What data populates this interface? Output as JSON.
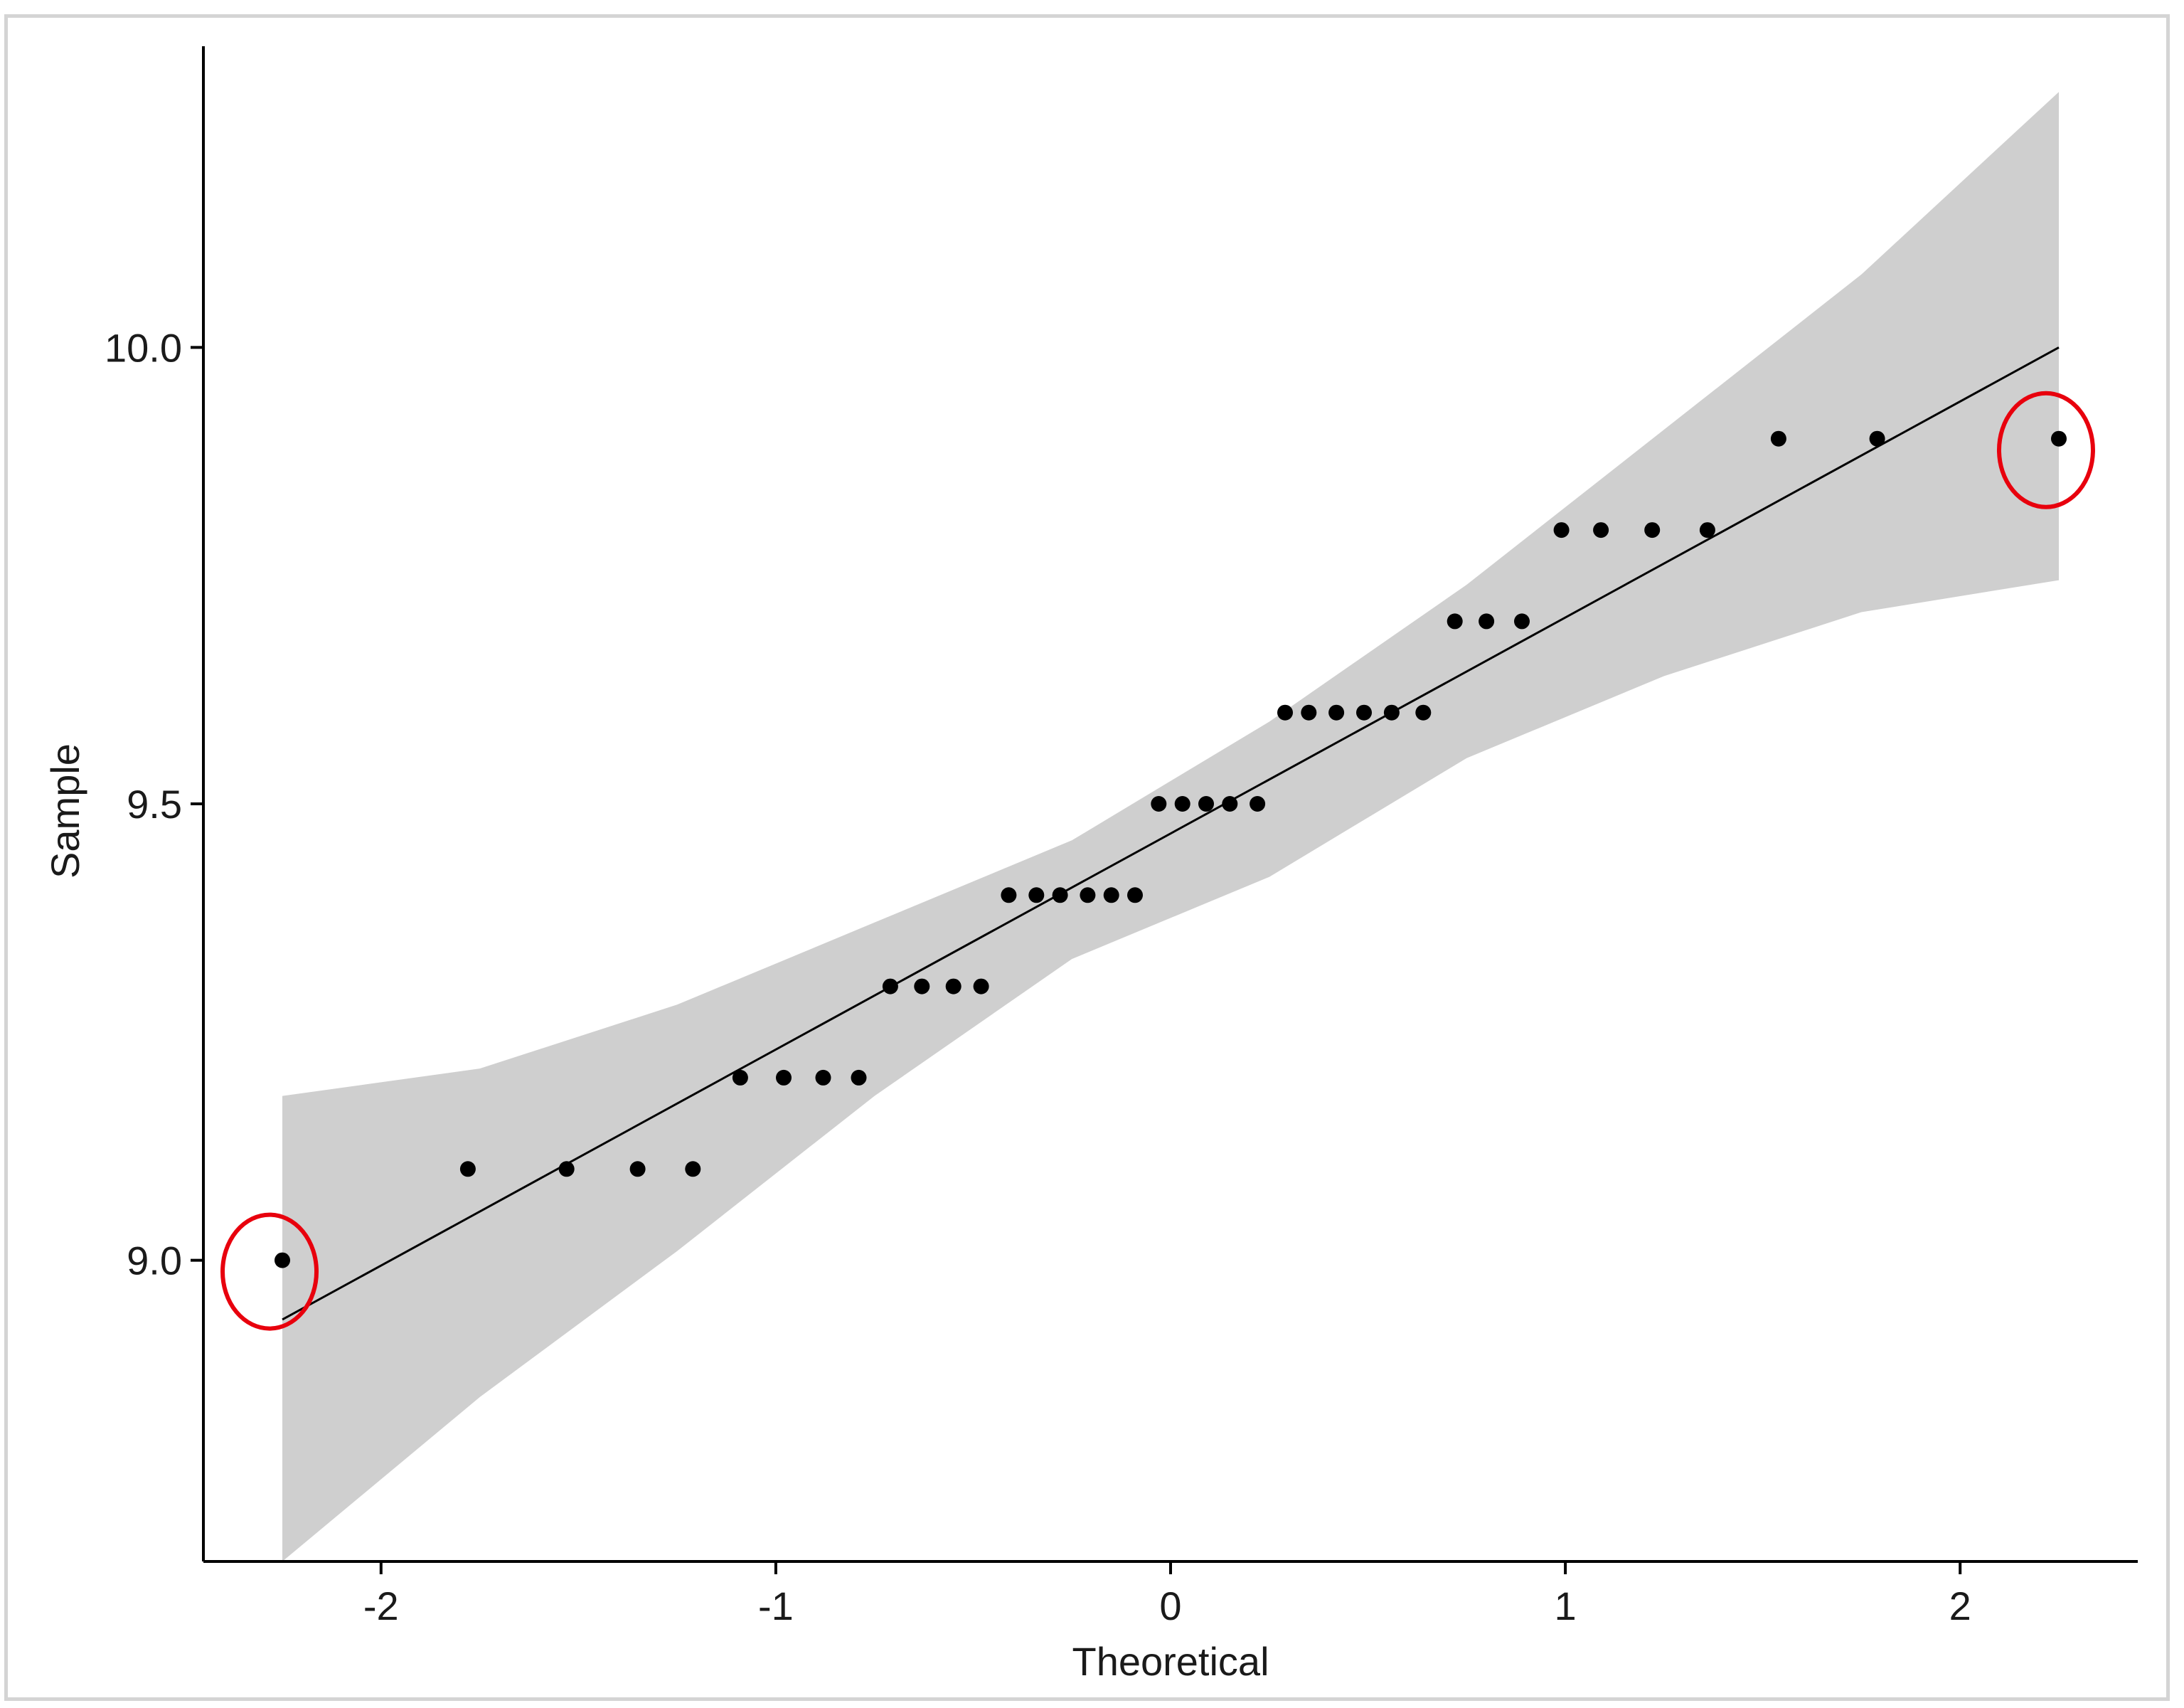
{
  "chart_data": {
    "type": "scatter",
    "xlabel": "Theoretical",
    "ylabel": "Sample",
    "xlim": [
      -2.45,
      2.45
    ],
    "ylim": [
      8.67,
      10.33
    ],
    "x_ticks": [
      -2,
      -1,
      0,
      1,
      2
    ],
    "x_tick_labels": [
      "-2",
      "-1",
      "0",
      "1",
      "2"
    ],
    "y_ticks": [
      9.0,
      9.5,
      10.0
    ],
    "y_tick_labels": [
      "9.0",
      "9.5",
      "10.0"
    ],
    "grid": false,
    "points": [
      [
        -2.25,
        9.0
      ],
      [
        -1.78,
        9.1
      ],
      [
        -1.53,
        9.1
      ],
      [
        -1.35,
        9.1
      ],
      [
        -1.21,
        9.1
      ],
      [
        -1.09,
        9.2
      ],
      [
        -0.98,
        9.2
      ],
      [
        -0.88,
        9.2
      ],
      [
        -0.79,
        9.2
      ],
      [
        -0.71,
        9.3
      ],
      [
        -0.63,
        9.3
      ],
      [
        -0.55,
        9.3
      ],
      [
        -0.48,
        9.3
      ],
      [
        -0.41,
        9.4
      ],
      [
        -0.34,
        9.4
      ],
      [
        -0.28,
        9.4
      ],
      [
        -0.21,
        9.4
      ],
      [
        -0.15,
        9.4
      ],
      [
        -0.09,
        9.4
      ],
      [
        -0.03,
        9.5
      ],
      [
        0.03,
        9.5
      ],
      [
        0.09,
        9.5
      ],
      [
        0.15,
        9.5
      ],
      [
        0.22,
        9.5
      ],
      [
        0.29,
        9.6
      ],
      [
        0.35,
        9.6
      ],
      [
        0.42,
        9.6
      ],
      [
        0.49,
        9.6
      ],
      [
        0.56,
        9.6
      ],
      [
        0.64,
        9.6
      ],
      [
        0.72,
        9.7
      ],
      [
        0.8,
        9.7
      ],
      [
        0.89,
        9.7
      ],
      [
        0.99,
        9.8
      ],
      [
        1.09,
        9.8
      ],
      [
        1.22,
        9.8
      ],
      [
        1.36,
        9.8
      ],
      [
        1.54,
        9.9
      ],
      [
        1.79,
        9.9
      ],
      [
        2.25,
        9.9
      ]
    ],
    "reference_line": {
      "x": [
        -2.25,
        2.25
      ],
      "y": [
        8.935,
        10.0
      ]
    },
    "confidence_band": {
      "x": [
        -2.25,
        -1.75,
        -1.25,
        -0.75,
        -0.25,
        0.25,
        0.75,
        1.25,
        1.75,
        2.25
      ],
      "lower": [
        8.67,
        8.85,
        9.01,
        9.18,
        9.33,
        9.42,
        9.55,
        9.64,
        9.71,
        9.745
      ],
      "upper": [
        9.18,
        9.21,
        9.28,
        9.37,
        9.46,
        9.59,
        9.74,
        9.91,
        10.08,
        10.28
      ]
    },
    "highlighted_points": [
      [
        -2.25,
        9.0
      ],
      [
        2.25,
        9.9
      ]
    ],
    "colors": {
      "band": "#cfcfcf",
      "points": "#000000",
      "line": "#000000",
      "highlight": "#e8000d"
    }
  }
}
